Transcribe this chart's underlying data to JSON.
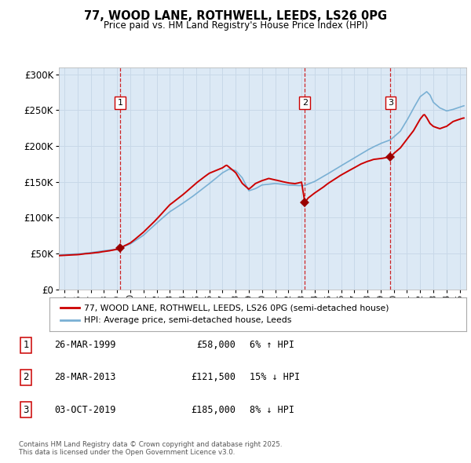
{
  "title": "77, WOOD LANE, ROTHWELL, LEEDS, LS26 0PG",
  "subtitle": "Price paid vs. HM Land Registry's House Price Index (HPI)",
  "bg_color": "#dce9f5",
  "plot_bg_color": "#dce9f5",
  "red_line_color": "#cc0000",
  "blue_line_color": "#7ab0d4",
  "sale_marker_color": "#990000",
  "dashed_line_color": "#cc0000",
  "grid_color": "#c8d8e8",
  "legend_label_red": "77, WOOD LANE, ROTHWELL, LEEDS, LS26 0PG (semi-detached house)",
  "legend_label_blue": "HPI: Average price, semi-detached house, Leeds",
  "sales": [
    {
      "num": 1,
      "date_num": 1999.23,
      "price": 58000,
      "label": "26-MAR-1999",
      "pct": "6%",
      "dir": "↑"
    },
    {
      "num": 2,
      "date_num": 2013.24,
      "price": 121500,
      "label": "28-MAR-2013",
      "pct": "15%",
      "dir": "↓"
    },
    {
      "num": 3,
      "date_num": 2019.75,
      "price": 185000,
      "label": "03-OCT-2019",
      "pct": "8%",
      "dir": "↓"
    }
  ],
  "footer1": "Contains HM Land Registry data © Crown copyright and database right 2025.",
  "footer2": "This data is licensed under the Open Government Licence v3.0.",
  "ylim": [
    0,
    310000
  ],
  "xlim_start": 1994.58,
  "xlim_end": 2025.5,
  "hpi_keypoints": [
    [
      1994.58,
      48000
    ],
    [
      1995.0,
      48500
    ],
    [
      1996.0,
      49500
    ],
    [
      1997.0,
      51000
    ],
    [
      1998.0,
      53500
    ],
    [
      1999.0,
      56000
    ],
    [
      1999.25,
      57500
    ],
    [
      2000.0,
      63000
    ],
    [
      2001.0,
      75000
    ],
    [
      2002.0,
      92000
    ],
    [
      2003.0,
      108000
    ],
    [
      2004.0,
      120000
    ],
    [
      2005.0,
      133000
    ],
    [
      2006.0,
      147000
    ],
    [
      2007.0,
      162000
    ],
    [
      2007.5,
      167000
    ],
    [
      2008.0,
      165000
    ],
    [
      2008.5,
      155000
    ],
    [
      2009.0,
      137000
    ],
    [
      2009.5,
      140000
    ],
    [
      2010.0,
      145000
    ],
    [
      2011.0,
      147000
    ],
    [
      2012.0,
      145000
    ],
    [
      2013.0,
      144000
    ],
    [
      2013.25,
      144500
    ],
    [
      2014.0,
      150000
    ],
    [
      2015.0,
      161000
    ],
    [
      2016.0,
      172000
    ],
    [
      2017.0,
      183000
    ],
    [
      2018.0,
      194000
    ],
    [
      2019.0,
      203000
    ],
    [
      2019.75,
      208000
    ],
    [
      2020.0,
      212000
    ],
    [
      2020.5,
      220000
    ],
    [
      2021.0,
      235000
    ],
    [
      2021.5,
      252000
    ],
    [
      2022.0,
      268000
    ],
    [
      2022.5,
      275000
    ],
    [
      2022.75,
      270000
    ],
    [
      2023.0,
      260000
    ],
    [
      2023.5,
      252000
    ],
    [
      2024.0,
      248000
    ],
    [
      2024.5,
      250000
    ],
    [
      2025.3,
      255000
    ]
  ],
  "red_keypoints": [
    [
      1994.58,
      47000
    ],
    [
      1995.0,
      47500
    ],
    [
      1996.0,
      48500
    ],
    [
      1997.0,
      50500
    ],
    [
      1998.0,
      53000
    ],
    [
      1999.0,
      56000
    ],
    [
      1999.23,
      58000
    ],
    [
      2000.0,
      65000
    ],
    [
      2001.0,
      80000
    ],
    [
      2002.0,
      98000
    ],
    [
      2003.0,
      118000
    ],
    [
      2004.0,
      132000
    ],
    [
      2005.0,
      148000
    ],
    [
      2006.0,
      162000
    ],
    [
      2007.0,
      170000
    ],
    [
      2007.3,
      174000
    ],
    [
      2008.0,
      163000
    ],
    [
      2008.5,
      148000
    ],
    [
      2009.0,
      140000
    ],
    [
      2009.5,
      148000
    ],
    [
      2010.0,
      152000
    ],
    [
      2010.5,
      155000
    ],
    [
      2011.0,
      153000
    ],
    [
      2011.5,
      151000
    ],
    [
      2012.0,
      149000
    ],
    [
      2012.5,
      148000
    ],
    [
      2013.0,
      150000
    ],
    [
      2013.24,
      121500
    ],
    [
      2013.5,
      128000
    ],
    [
      2014.0,
      135000
    ],
    [
      2014.5,
      141000
    ],
    [
      2015.0,
      148000
    ],
    [
      2015.5,
      154000
    ],
    [
      2016.0,
      160000
    ],
    [
      2016.5,
      165000
    ],
    [
      2017.0,
      170000
    ],
    [
      2017.5,
      175000
    ],
    [
      2018.0,
      179000
    ],
    [
      2018.5,
      182000
    ],
    [
      2019.0,
      183000
    ],
    [
      2019.75,
      185000
    ],
    [
      2020.0,
      190000
    ],
    [
      2020.5,
      198000
    ],
    [
      2021.0,
      210000
    ],
    [
      2021.5,
      222000
    ],
    [
      2022.0,
      238000
    ],
    [
      2022.3,
      245000
    ],
    [
      2022.5,
      240000
    ],
    [
      2022.75,
      232000
    ],
    [
      2023.0,
      228000
    ],
    [
      2023.5,
      225000
    ],
    [
      2024.0,
      228000
    ],
    [
      2024.5,
      235000
    ],
    [
      2025.3,
      240000
    ]
  ]
}
